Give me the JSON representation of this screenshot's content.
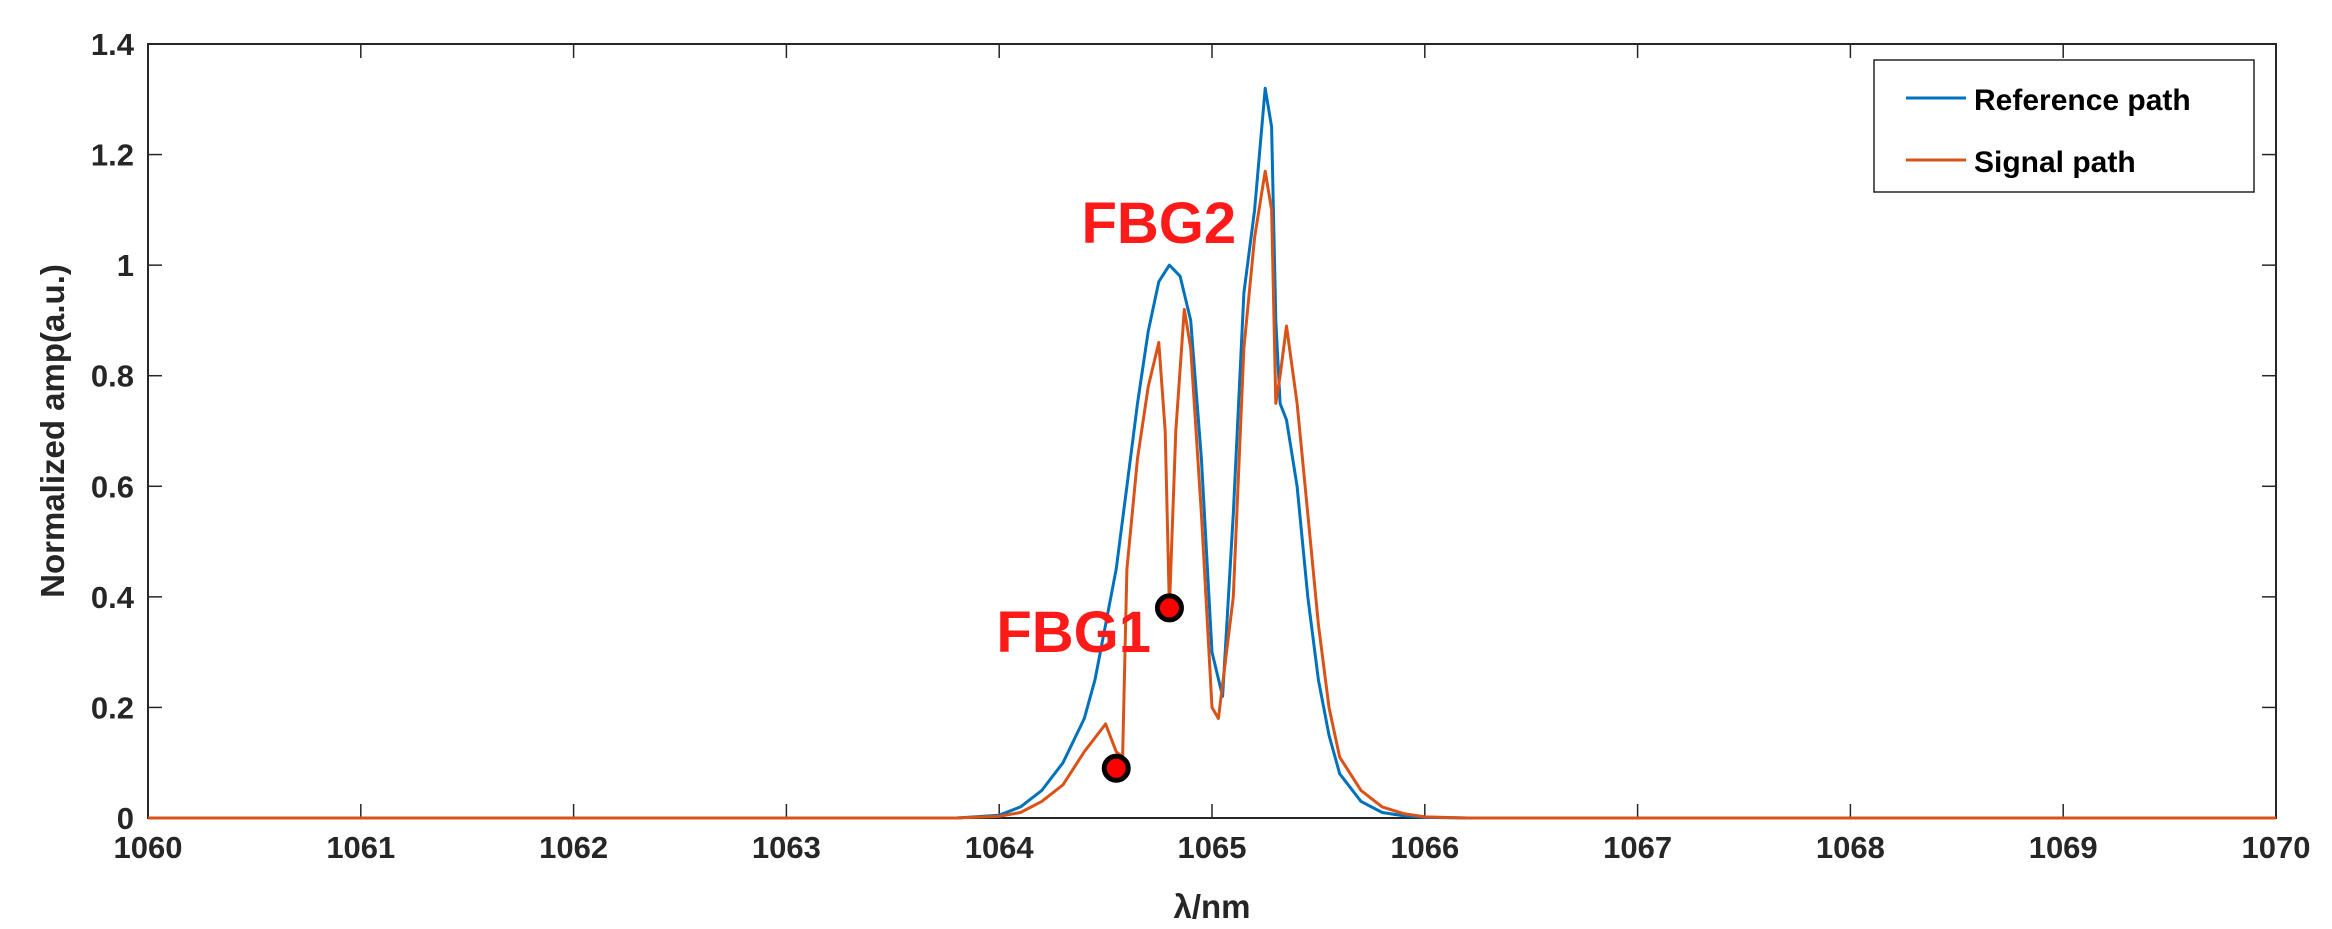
{
  "chart_data": {
    "type": "line",
    "title": "",
    "xlabel": "λ/nm",
    "ylabel": "Normalized amp(a.u.)",
    "xlim": [
      1060,
      1070
    ],
    "ylim": [
      0,
      1.4
    ],
    "xticks": [
      1060,
      1061,
      1062,
      1063,
      1064,
      1065,
      1066,
      1067,
      1068,
      1069,
      1070
    ],
    "yticks": [
      0,
      0.2,
      0.4,
      0.6,
      0.8,
      1,
      1.2,
      1.4
    ],
    "xtick_labels": [
      "1060",
      "1061",
      "1062",
      "1063",
      "1064",
      "1065",
      "1066",
      "1067",
      "1068",
      "1069",
      "1070"
    ],
    "ytick_labels": [
      "0",
      "0.2",
      "0.4",
      "0.6",
      "0.8",
      "1",
      "1.2",
      "1.4"
    ],
    "grid": false,
    "legend_position": "top-right",
    "series": [
      {
        "name": "Reference path",
        "color": "#0072BD",
        "x": [
          1060,
          1063.8,
          1064.0,
          1064.1,
          1064.2,
          1064.3,
          1064.4,
          1064.45,
          1064.5,
          1064.55,
          1064.6,
          1064.65,
          1064.7,
          1064.75,
          1064.8,
          1064.85,
          1064.9,
          1064.95,
          1065.0,
          1065.05,
          1065.1,
          1065.15,
          1065.2,
          1065.25,
          1065.28,
          1065.3,
          1065.32,
          1065.35,
          1065.4,
          1065.45,
          1065.5,
          1065.55,
          1065.6,
          1065.7,
          1065.8,
          1065.9,
          1066.0,
          1066.2,
          1070
        ],
        "y": [
          0,
          0,
          0.005,
          0.02,
          0.05,
          0.1,
          0.18,
          0.25,
          0.35,
          0.45,
          0.6,
          0.75,
          0.88,
          0.97,
          1.0,
          0.98,
          0.9,
          0.65,
          0.3,
          0.22,
          0.55,
          0.95,
          1.1,
          1.32,
          1.25,
          0.9,
          0.75,
          0.72,
          0.6,
          0.4,
          0.25,
          0.15,
          0.08,
          0.03,
          0.01,
          0.004,
          0.001,
          0,
          0
        ]
      },
      {
        "name": "Signal path",
        "color": "#D95319",
        "x": [
          1060,
          1063.8,
          1064.0,
          1064.1,
          1064.2,
          1064.3,
          1064.4,
          1064.5,
          1064.55,
          1064.58,
          1064.6,
          1064.65,
          1064.7,
          1064.75,
          1064.78,
          1064.8,
          1064.83,
          1064.87,
          1064.9,
          1064.95,
          1065.0,
          1065.03,
          1065.1,
          1065.15,
          1065.2,
          1065.25,
          1065.28,
          1065.3,
          1065.32,
          1065.35,
          1065.4,
          1065.45,
          1065.5,
          1065.55,
          1065.6,
          1065.7,
          1065.8,
          1065.9,
          1066.0,
          1066.2,
          1070
        ],
        "y": [
          0,
          0,
          0.003,
          0.01,
          0.03,
          0.06,
          0.12,
          0.17,
          0.12,
          0.11,
          0.45,
          0.65,
          0.78,
          0.86,
          0.7,
          0.38,
          0.7,
          0.92,
          0.85,
          0.55,
          0.2,
          0.18,
          0.4,
          0.85,
          1.05,
          1.17,
          1.1,
          0.75,
          0.8,
          0.89,
          0.75,
          0.55,
          0.35,
          0.2,
          0.11,
          0.05,
          0.02,
          0.008,
          0.002,
          0,
          0
        ]
      }
    ],
    "markers": [
      {
        "x": 1064.55,
        "y": 0.09,
        "color": "#FF0000"
      },
      {
        "x": 1064.8,
        "y": 0.38,
        "color": "#FF0000"
      }
    ],
    "annotations": [
      {
        "text": "FBG1",
        "x": 1064.35,
        "y": 0.3,
        "color": "#FF1A1A"
      },
      {
        "text": "FBG2",
        "x": 1064.75,
        "y": 1.04,
        "color": "#FF1A1A"
      }
    ]
  }
}
